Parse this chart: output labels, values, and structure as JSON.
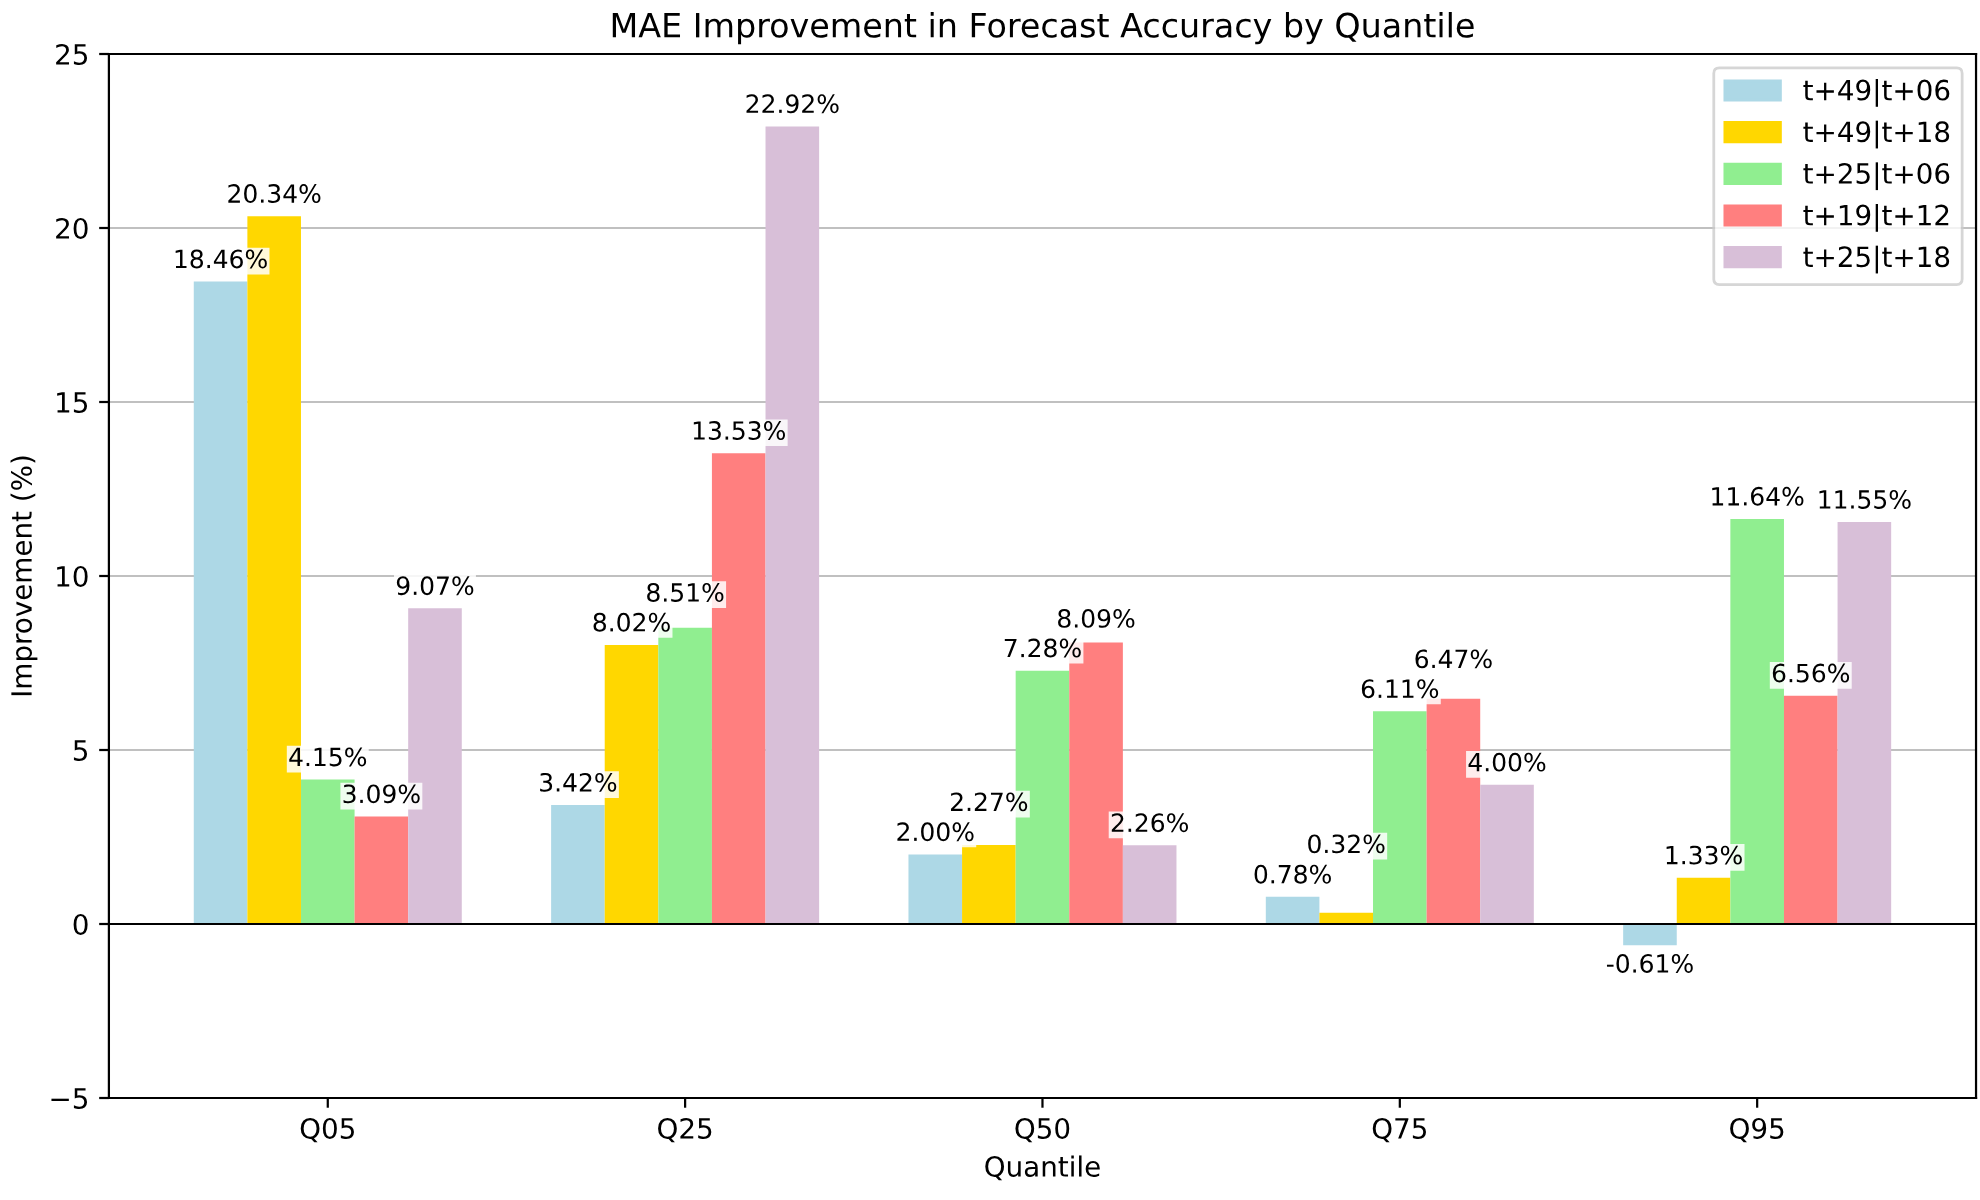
{
  "chart_data": {
    "type": "bar",
    "title": "MAE Improvement in Forecast Accuracy by Quantile",
    "xlabel": "Quantile",
    "ylabel": "Improvement (%)",
    "categories": [
      "Q05",
      "Q25",
      "Q50",
      "Q75",
      "Q95"
    ],
    "series": [
      {
        "name": "t+49|t+06",
        "color": "#add8e6",
        "values": [
          18.46,
          3.42,
          2.0,
          0.78,
          -0.61
        ],
        "value_labels": [
          "18.46%",
          "3.42%",
          "2.00%",
          "0.78%",
          "-0.61%"
        ]
      },
      {
        "name": "t+49|t+18",
        "color": "#ffd700",
        "values": [
          20.34,
          8.02,
          2.27,
          0.32,
          1.33
        ],
        "value_labels": [
          "20.34%",
          "8.02%",
          "2.27%",
          "0.32%",
          "1.33%"
        ]
      },
      {
        "name": "t+25|t+06",
        "color": "#90ee90",
        "values": [
          4.15,
          8.51,
          7.28,
          6.11,
          11.64
        ],
        "value_labels": [
          "4.15%",
          "8.51%",
          "7.28%",
          "6.11%",
          "11.64%"
        ]
      },
      {
        "name": "t+19|t+12",
        "color": "#ff7f7f",
        "values": [
          3.09,
          13.53,
          8.09,
          6.47,
          6.56
        ],
        "value_labels": [
          "3.09%",
          "13.53%",
          "8.09%",
          "6.47%",
          "6.56%"
        ]
      },
      {
        "name": "t+25|t+18",
        "color": "#d8bfd8",
        "values": [
          9.07,
          22.92,
          2.26,
          4.0,
          11.55
        ],
        "value_labels": [
          "9.07%",
          "22.92%",
          "2.26%",
          "4.00%",
          "11.55%"
        ]
      }
    ],
    "ylim": [
      -5,
      25
    ],
    "yticks": [
      {
        "value": -5,
        "label": "−5"
      },
      0,
      5,
      10,
      15,
      20,
      25
    ],
    "ref_lines": [
      {
        "axis": "y",
        "value": 0,
        "color": "#000000"
      }
    ],
    "grid": "y",
    "legend": "top right"
  }
}
